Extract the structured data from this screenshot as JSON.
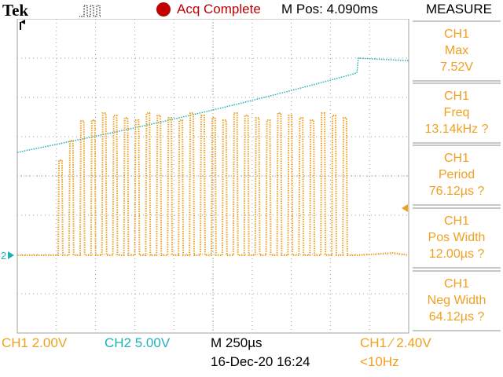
{
  "header": {
    "brand": "Tek",
    "acq_status": "Acq Complete",
    "m_pos": "M Pos: 4.090ms"
  },
  "measure": {
    "title": "MEASURE",
    "items": [
      {
        "channel": "CH1",
        "name": "Max",
        "value": "7.52V"
      },
      {
        "channel": "CH1",
        "name": "Freq",
        "value": "13.14kHz ?"
      },
      {
        "channel": "CH1",
        "name": "Period",
        "value": "76.12µs ?"
      },
      {
        "channel": "CH1",
        "name": "Pos Width",
        "value": "12.00µs ?"
      },
      {
        "channel": "CH1",
        "name": "Neg Width",
        "value": "64.12µs ?"
      }
    ]
  },
  "footer": {
    "ch1_scale": "CH1  2.00V",
    "ch2_scale": "CH2  5.00V",
    "timebase": "M 250µs",
    "datetime": "16-Dec-20 16:24",
    "trigger": "CH1 ∕ 2.40V",
    "trigger_freq": "<10Hz"
  },
  "markers": {
    "ch_marker": "2"
  },
  "colors": {
    "ch1": "#f0a020",
    "ch2": "#20b0b8",
    "acq": "#c00000"
  }
}
